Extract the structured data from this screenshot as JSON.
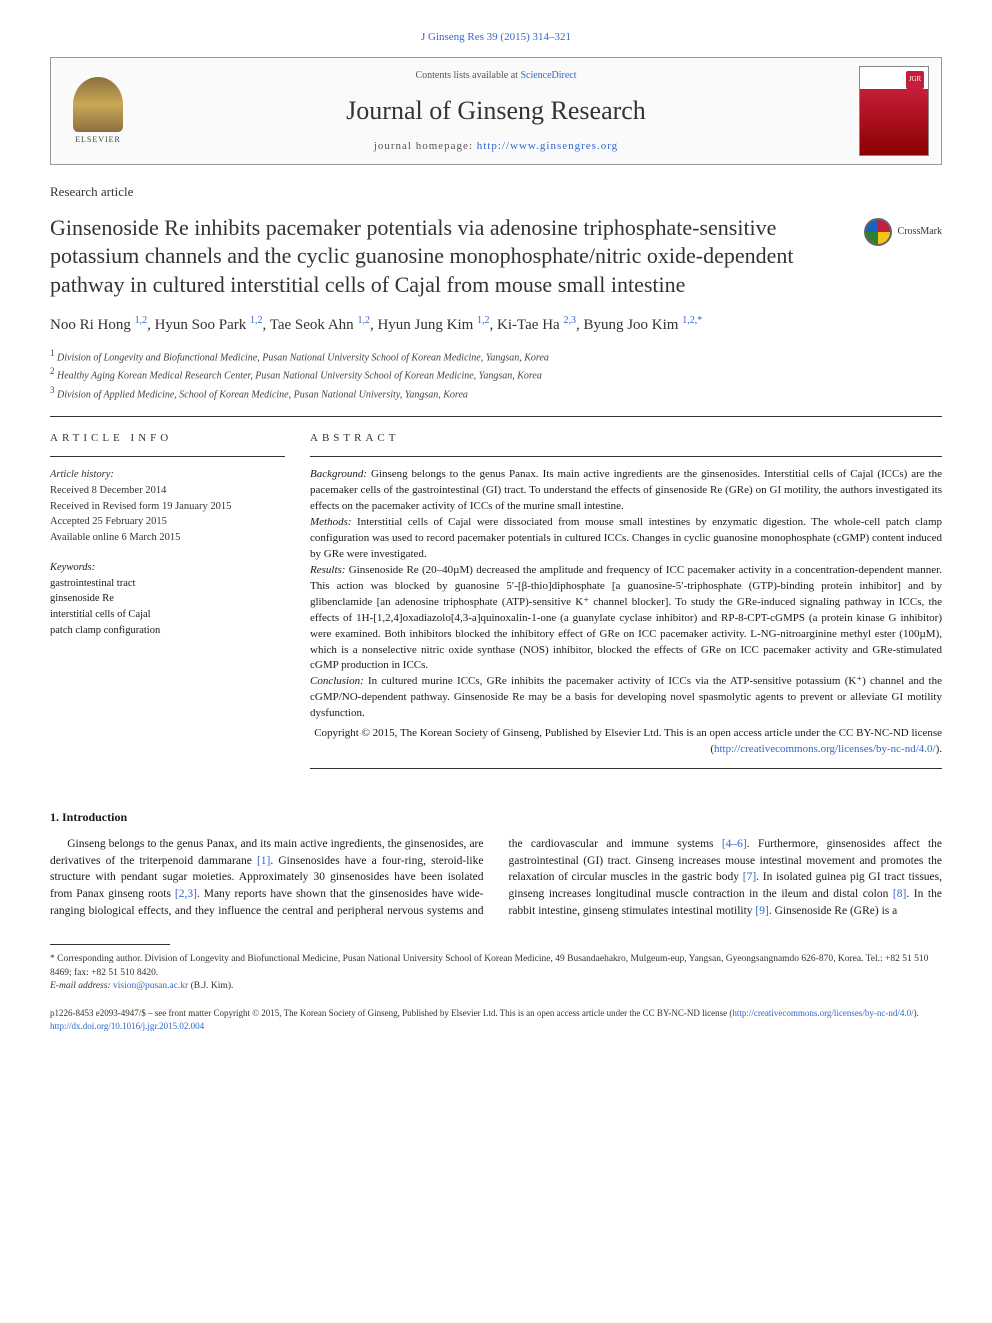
{
  "citation": "J Ginseng Res 39 (2015) 314–321",
  "header": {
    "contents_prefix": "Contents lists available at ",
    "contents_link": "ScienceDirect",
    "journal_name": "Journal of Ginseng Research",
    "homepage_prefix": "journal homepage: ",
    "homepage_url": "http://www.ginsengres.org",
    "elsevier_label": "ELSEVIER",
    "cover_badge": "JGR"
  },
  "article_type": "Research article",
  "title": "Ginsenoside Re inhibits pacemaker potentials via adenosine triphosphate-sensitive potassium channels and the cyclic guanosine monophosphate/nitric oxide-dependent pathway in cultured interstitial cells of Cajal from mouse small intestine",
  "crossmark_label": "CrossMark",
  "authors_html": "Noo Ri Hong <sup class='sup'>1,2</sup>, Hyun Soo Park <sup class='sup'>1,2</sup>, Tae Seok Ahn <sup class='sup'>1,2</sup>, Hyun Jung Kim <sup class='sup'>1,2</sup>, Ki-Tae Ha <sup class='sup'>2,3</sup>, Byung Joo Kim <sup class='sup'>1,2,*</sup>",
  "affiliations": [
    {
      "num": "1",
      "text": "Division of Longevity and Biofunctional Medicine, Pusan National University School of Korean Medicine, Yangsan, Korea"
    },
    {
      "num": "2",
      "text": "Healthy Aging Korean Medical Research Center, Pusan National University School of Korean Medicine, Yangsan, Korea"
    },
    {
      "num": "3",
      "text": "Division of Applied Medicine, School of Korean Medicine, Pusan National University, Yangsan, Korea"
    }
  ],
  "article_info": {
    "heading": "ARTICLE INFO",
    "history_label": "Article history:",
    "received": "Received 8 December 2014",
    "revised": "Received in Revised form 19 January 2015",
    "accepted": "Accepted 25 February 2015",
    "online": "Available online 6 March 2015",
    "keywords_label": "Keywords:",
    "keywords": [
      "gastrointestinal tract",
      "ginsenoside Re",
      "interstitial cells of Cajal",
      "patch clamp configuration"
    ]
  },
  "abstract": {
    "heading": "ABSTRACT",
    "background_label": "Background:",
    "background": " Ginseng belongs to the genus Panax. Its main active ingredients are the ginsenosides. Interstitial cells of Cajal (ICCs) are the pacemaker cells of the gastrointestinal (GI) tract. To understand the effects of ginsenoside Re (GRe) on GI motility, the authors investigated its effects on the pacemaker activity of ICCs of the murine small intestine.",
    "methods_label": "Methods:",
    "methods": " Interstitial cells of Cajal were dissociated from mouse small intestines by enzymatic digestion. The whole-cell patch clamp configuration was used to record pacemaker potentials in cultured ICCs. Changes in cyclic guanosine monophosphate (cGMP) content induced by GRe were investigated.",
    "results_label": "Results:",
    "results": " Ginsenoside Re (20–40µM) decreased the amplitude and frequency of ICC pacemaker activity in a concentration-dependent manner. This action was blocked by guanosine 5′-[β-thio]diphosphate [a guanosine-5′-triphosphate (GTP)-binding protein inhibitor] and by glibenclamide [an adenosine triphosphate (ATP)-sensitive K⁺ channel blocker]. To study the GRe-induced signaling pathway in ICCs, the effects of 1H-[1,2,4]oxadiazolo[4,3-a]quinoxalin-1-one (a guanylate cyclase inhibitor) and RP-8-CPT-cGMPS (a protein kinase G inhibitor) were examined. Both inhibitors blocked the inhibitory effect of GRe on ICC pacemaker activity. L-NG-nitroarginine methyl ester (100µM), which is a nonselective nitric oxide synthase (NOS) inhibitor, blocked the effects of GRe on ICC pacemaker activity and GRe-stimulated cGMP production in ICCs.",
    "conclusion_label": "Conclusion:",
    "conclusion": " In cultured murine ICCs, GRe inhibits the pacemaker activity of ICCs via the ATP-sensitive potassium (K⁺) channel and the cGMP/NO-dependent pathway. Ginsenoside Re may be a basis for developing novel spasmolytic agents to prevent or alleviate GI motility dysfunction.",
    "copyright": "Copyright © 2015, The Korean Society of Ginseng, Published by Elsevier Ltd. This is an open access article under the CC BY-NC-ND license (",
    "license_url": "http://creativecommons.org/licenses/by-nc-nd/4.0/",
    "copyright_close": ")."
  },
  "intro": {
    "heading": "1. Introduction",
    "p1_a": "Ginseng belongs to the genus Panax, and its main active ingredients, the ginsenosides, are derivatives of the triterpenoid dammarane ",
    "ref1": "[1]",
    "p1_b": ". Ginsenosides have a four-ring, steroid-like structure with pendant sugar moieties. Approximately 30 ginsenosides have been isolated from Panax ginseng roots ",
    "ref23": "[2,3]",
    "p1_c": ". Many reports have shown that the ginsenosides have wide-ranging biological",
    "p2_a": "effects, and they influence the central and peripheral nervous systems and the cardiovascular and immune systems ",
    "ref46": "[4–6]",
    "p2_b": ". Furthermore, ginsenosides affect the gastrointestinal (GI) tract. Ginseng increases mouse intestinal movement and promotes the relaxation of circular muscles in the gastric body ",
    "ref7": "[7]",
    "p2_c": ". In isolated guinea pig GI tract tissues, ginseng increases longitudinal muscle contraction in the ileum and distal colon ",
    "ref8": "[8]",
    "p2_d": ". In the rabbit intestine, ginseng stimulates intestinal motility ",
    "ref9": "[9]",
    "p2_e": ". Ginsenoside Re (GRe) is a"
  },
  "corresponding": {
    "star": "* ",
    "text": "Corresponding author. Division of Longevity and Biofunctional Medicine, Pusan National University School of Korean Medicine, 49 Busandaehakro, Mulgeum-eup, Yangsan, Gyeongsangnamdo 626-870, Korea. Tel.: +82 51 510 8469; fax: +82 51 510 8420.",
    "email_label": "E-mail address: ",
    "email": "vision@pusan.ac.kr",
    "email_suffix": " (B.J. Kim)."
  },
  "footer": {
    "line1_a": "p1226-8453  e2093-4947/$ – see front matter Copyright © 2015, The Korean Society of Ginseng, Published by Elsevier Ltd. This is an open access article under the CC BY-NC-ND license (",
    "license_url": "http://creativecommons.org/licenses/by-nc-nd/4.0/",
    "line1_b": ").",
    "doi": "http://dx.doi.org/10.1016/j.jgr.2015.02.004"
  },
  "colors": {
    "link": "#3366cc",
    "text": "#1a1a1a",
    "rule": "#333333"
  }
}
